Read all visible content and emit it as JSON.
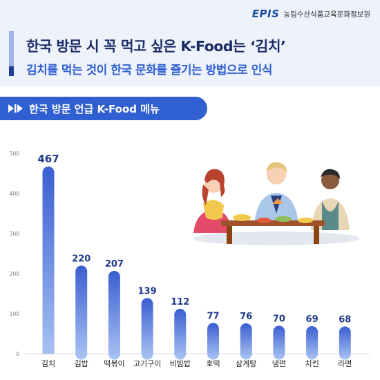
{
  "logo": {
    "mark": "EPIS",
    "org": "농림수산식품교육문화정보원"
  },
  "header": {
    "title": "한국 방문 시 꼭 먹고 싶은 K-Food는 ‘김치’",
    "subtitle": "김치를 먹는 것이 한국 문화를 즐기는 방법으로 인식"
  },
  "section": {
    "title": "한국 방문 언급 K-Food 메뉴"
  },
  "colors": {
    "accent": "#2f5fd0",
    "bar_top": "#3b5ed1",
    "bar_bottom": "#a9c4f3",
    "title": "#1b2b66"
  },
  "chart_data": {
    "type": "bar",
    "title": "한국 방문 언급 K-Food 메뉴",
    "xlabel": "",
    "ylabel": "",
    "ylim": [
      0,
      500
    ],
    "yticks": [
      0,
      100,
      200,
      300,
      400,
      500
    ],
    "grid": false,
    "categories": [
      "김치",
      "김밥",
      "떡볶이",
      "고기구이",
      "비빔밥",
      "호떡",
      "삼계탕",
      "냉면",
      "치킨",
      "라면"
    ],
    "values": [
      467,
      220,
      207,
      139,
      112,
      77,
      76,
      70,
      69,
      68
    ]
  }
}
